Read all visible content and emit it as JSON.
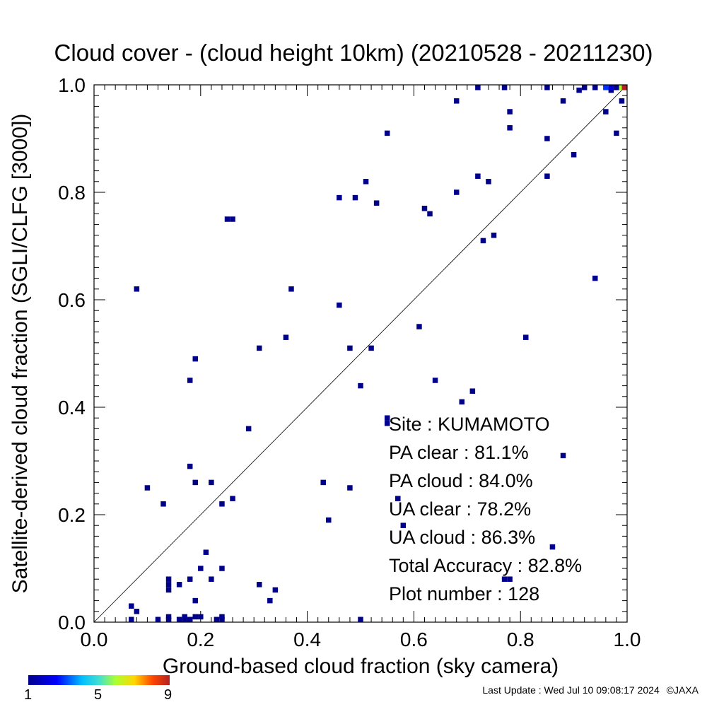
{
  "chart_data": {
    "type": "scatter",
    "title": "Cloud cover - (cloud height 10km)  (20210528 - 20211230)",
    "xlabel": "Ground-based cloud fraction (sky camera)",
    "ylabel": "Satellite-derived cloud fraction (SGLI/CLFG [3000])",
    "xlim": [
      0.0,
      1.0
    ],
    "ylim": [
      0.0,
      1.0
    ],
    "xticks": [
      "0.0",
      "0.2",
      "0.4",
      "0.6",
      "0.8",
      "1.0"
    ],
    "yticks": [
      "0.0",
      "0.2",
      "0.4",
      "0.6",
      "0.8",
      "1.0"
    ],
    "diagonal": true,
    "colorbar": {
      "min_label": "1",
      "mid_label": "5",
      "max_label": "9"
    },
    "points": [
      {
        "x": 0.08,
        "y": 0.62,
        "c": 1
      },
      {
        "x": 0.25,
        "y": 0.75,
        "c": 1
      },
      {
        "x": 0.26,
        "y": 0.75,
        "c": 1
      },
      {
        "x": 0.37,
        "y": 0.62,
        "c": 1
      },
      {
        "x": 0.55,
        "y": 0.91,
        "c": 1
      },
      {
        "x": 0.46,
        "y": 0.79,
        "c": 1
      },
      {
        "x": 0.49,
        "y": 0.79,
        "c": 1
      },
      {
        "x": 0.51,
        "y": 0.82,
        "c": 1
      },
      {
        "x": 0.53,
        "y": 0.78,
        "c": 1
      },
      {
        "x": 0.46,
        "y": 0.59,
        "c": 1
      },
      {
        "x": 0.36,
        "y": 0.53,
        "c": 1
      },
      {
        "x": 0.31,
        "y": 0.51,
        "c": 1
      },
      {
        "x": 0.19,
        "y": 0.49,
        "c": 1
      },
      {
        "x": 0.18,
        "y": 0.45,
        "c": 1
      },
      {
        "x": 0.48,
        "y": 0.51,
        "c": 1
      },
      {
        "x": 0.52,
        "y": 0.51,
        "c": 1
      },
      {
        "x": 0.5,
        "y": 0.44,
        "c": 1
      },
      {
        "x": 0.61,
        "y": 0.55,
        "c": 1
      },
      {
        "x": 0.64,
        "y": 0.45,
        "c": 1
      },
      {
        "x": 0.69,
        "y": 0.41,
        "c": 1
      },
      {
        "x": 0.71,
        "y": 0.43,
        "c": 1
      },
      {
        "x": 0.29,
        "y": 0.36,
        "c": 1
      },
      {
        "x": 0.55,
        "y": 0.37,
        "c": 1
      },
      {
        "x": 0.55,
        "y": 0.38,
        "c": 1
      },
      {
        "x": 0.68,
        "y": 0.97,
        "c": 1
      },
      {
        "x": 0.72,
        "y": 1.0,
        "c": 1
      },
      {
        "x": 0.77,
        "y": 1.0,
        "c": 1
      },
      {
        "x": 0.78,
        "y": 0.95,
        "c": 1
      },
      {
        "x": 0.78,
        "y": 0.92,
        "c": 1
      },
      {
        "x": 0.68,
        "y": 0.8,
        "c": 1
      },
      {
        "x": 0.72,
        "y": 0.83,
        "c": 1
      },
      {
        "x": 0.74,
        "y": 0.82,
        "c": 1
      },
      {
        "x": 0.62,
        "y": 0.77,
        "c": 1
      },
      {
        "x": 0.63,
        "y": 0.76,
        "c": 1
      },
      {
        "x": 0.73,
        "y": 0.71,
        "c": 1
      },
      {
        "x": 0.75,
        "y": 0.72,
        "c": 1
      },
      {
        "x": 0.85,
        "y": 1.0,
        "c": 1
      },
      {
        "x": 0.88,
        "y": 0.97,
        "c": 1
      },
      {
        "x": 0.85,
        "y": 0.9,
        "c": 1
      },
      {
        "x": 0.9,
        "y": 0.87,
        "c": 1
      },
      {
        "x": 0.85,
        "y": 0.83,
        "c": 1
      },
      {
        "x": 0.91,
        "y": 0.99,
        "c": 1
      },
      {
        "x": 0.92,
        "y": 1.0,
        "c": 1
      },
      {
        "x": 0.94,
        "y": 1.0,
        "c": 1
      },
      {
        "x": 0.96,
        "y": 0.95,
        "c": 1
      },
      {
        "x": 0.97,
        "y": 0.99,
        "c": 1
      },
      {
        "x": 0.98,
        "y": 0.91,
        "c": 1
      },
      {
        "x": 0.99,
        "y": 0.97,
        "c": 1
      },
      {
        "x": 0.94,
        "y": 0.64,
        "c": 1
      },
      {
        "x": 0.81,
        "y": 0.53,
        "c": 1
      },
      {
        "x": 0.88,
        "y": 0.31,
        "c": 1
      },
      {
        "x": 0.1,
        "y": 0.25,
        "c": 1
      },
      {
        "x": 0.13,
        "y": 0.22,
        "c": 1
      },
      {
        "x": 0.18,
        "y": 0.29,
        "c": 1
      },
      {
        "x": 0.19,
        "y": 0.26,
        "c": 1
      },
      {
        "x": 0.22,
        "y": 0.26,
        "c": 1
      },
      {
        "x": 0.24,
        "y": 0.22,
        "c": 1
      },
      {
        "x": 0.26,
        "y": 0.23,
        "c": 1
      },
      {
        "x": 0.43,
        "y": 0.26,
        "c": 1
      },
      {
        "x": 0.48,
        "y": 0.25,
        "c": 1
      },
      {
        "x": 0.44,
        "y": 0.19,
        "c": 1
      },
      {
        "x": 0.57,
        "y": 0.23,
        "c": 1
      },
      {
        "x": 0.58,
        "y": 0.18,
        "c": 1
      },
      {
        "x": 0.86,
        "y": 0.14,
        "c": 1
      },
      {
        "x": 0.77,
        "y": 0.08,
        "c": 1
      },
      {
        "x": 0.78,
        "y": 0.08,
        "c": 1
      },
      {
        "x": 0.21,
        "y": 0.13,
        "c": 1
      },
      {
        "x": 0.2,
        "y": 0.1,
        "c": 1
      },
      {
        "x": 0.24,
        "y": 0.1,
        "c": 1
      },
      {
        "x": 0.14,
        "y": 0.08,
        "c": 1
      },
      {
        "x": 0.14,
        "y": 0.07,
        "c": 1
      },
      {
        "x": 0.14,
        "y": 0.06,
        "c": 1
      },
      {
        "x": 0.16,
        "y": 0.07,
        "c": 1
      },
      {
        "x": 0.18,
        "y": 0.08,
        "c": 1
      },
      {
        "x": 0.22,
        "y": 0.08,
        "c": 1
      },
      {
        "x": 0.19,
        "y": 0.04,
        "c": 1
      },
      {
        "x": 0.07,
        "y": 0.03,
        "c": 1
      },
      {
        "x": 0.08,
        "y": 0.02,
        "c": 1
      },
      {
        "x": 0.31,
        "y": 0.07,
        "c": 1
      },
      {
        "x": 0.34,
        "y": 0.06,
        "c": 1
      },
      {
        "x": 0.33,
        "y": 0.04,
        "c": 1
      },
      {
        "x": 0.07,
        "y": 0.0,
        "c": 1
      },
      {
        "x": 0.12,
        "y": 0.0,
        "c": 1
      },
      {
        "x": 0.14,
        "y": 0.0,
        "c": 1
      },
      {
        "x": 0.14,
        "y": 0.01,
        "c": 1
      },
      {
        "x": 0.16,
        "y": 0.0,
        "c": 1
      },
      {
        "x": 0.17,
        "y": 0.0,
        "c": 1
      },
      {
        "x": 0.17,
        "y": 0.01,
        "c": 1
      },
      {
        "x": 0.18,
        "y": 0.0,
        "c": 1
      },
      {
        "x": 0.19,
        "y": 0.01,
        "c": 1
      },
      {
        "x": 0.2,
        "y": 0.01,
        "c": 1
      },
      {
        "x": 0.23,
        "y": 0.0,
        "c": 1
      },
      {
        "x": 0.24,
        "y": 0.0,
        "c": 1
      },
      {
        "x": 0.24,
        "y": 0.01,
        "c": 1
      },
      {
        "x": 0.5,
        "y": 0.0,
        "c": 1
      },
      {
        "x": 0.96,
        "y": 1.0,
        "c": 3
      },
      {
        "x": 0.97,
        "y": 1.0,
        "c": 2
      },
      {
        "x": 0.98,
        "y": 1.0,
        "c": 1
      },
      {
        "x": 0.99,
        "y": 1.0,
        "c": 6
      },
      {
        "x": 1.0,
        "y": 1.0,
        "c": 9
      }
    ],
    "stats": {
      "site": "Site : KUMAMOTO",
      "pa_clear": "PA clear :  81.1%",
      "pa_cloud": "PA cloud :  84.0%",
      "ua_clear": "UA clear :  78.2%",
      "ua_cloud": "UA cloud :  86.3%",
      "total": "Total Accuracy :  82.8%",
      "plot_number": "Plot number :       128"
    }
  },
  "footer": {
    "last_update": "Last Update : Wed Jul 10 09:08:17 2024",
    "copyright": "©JAXA"
  }
}
